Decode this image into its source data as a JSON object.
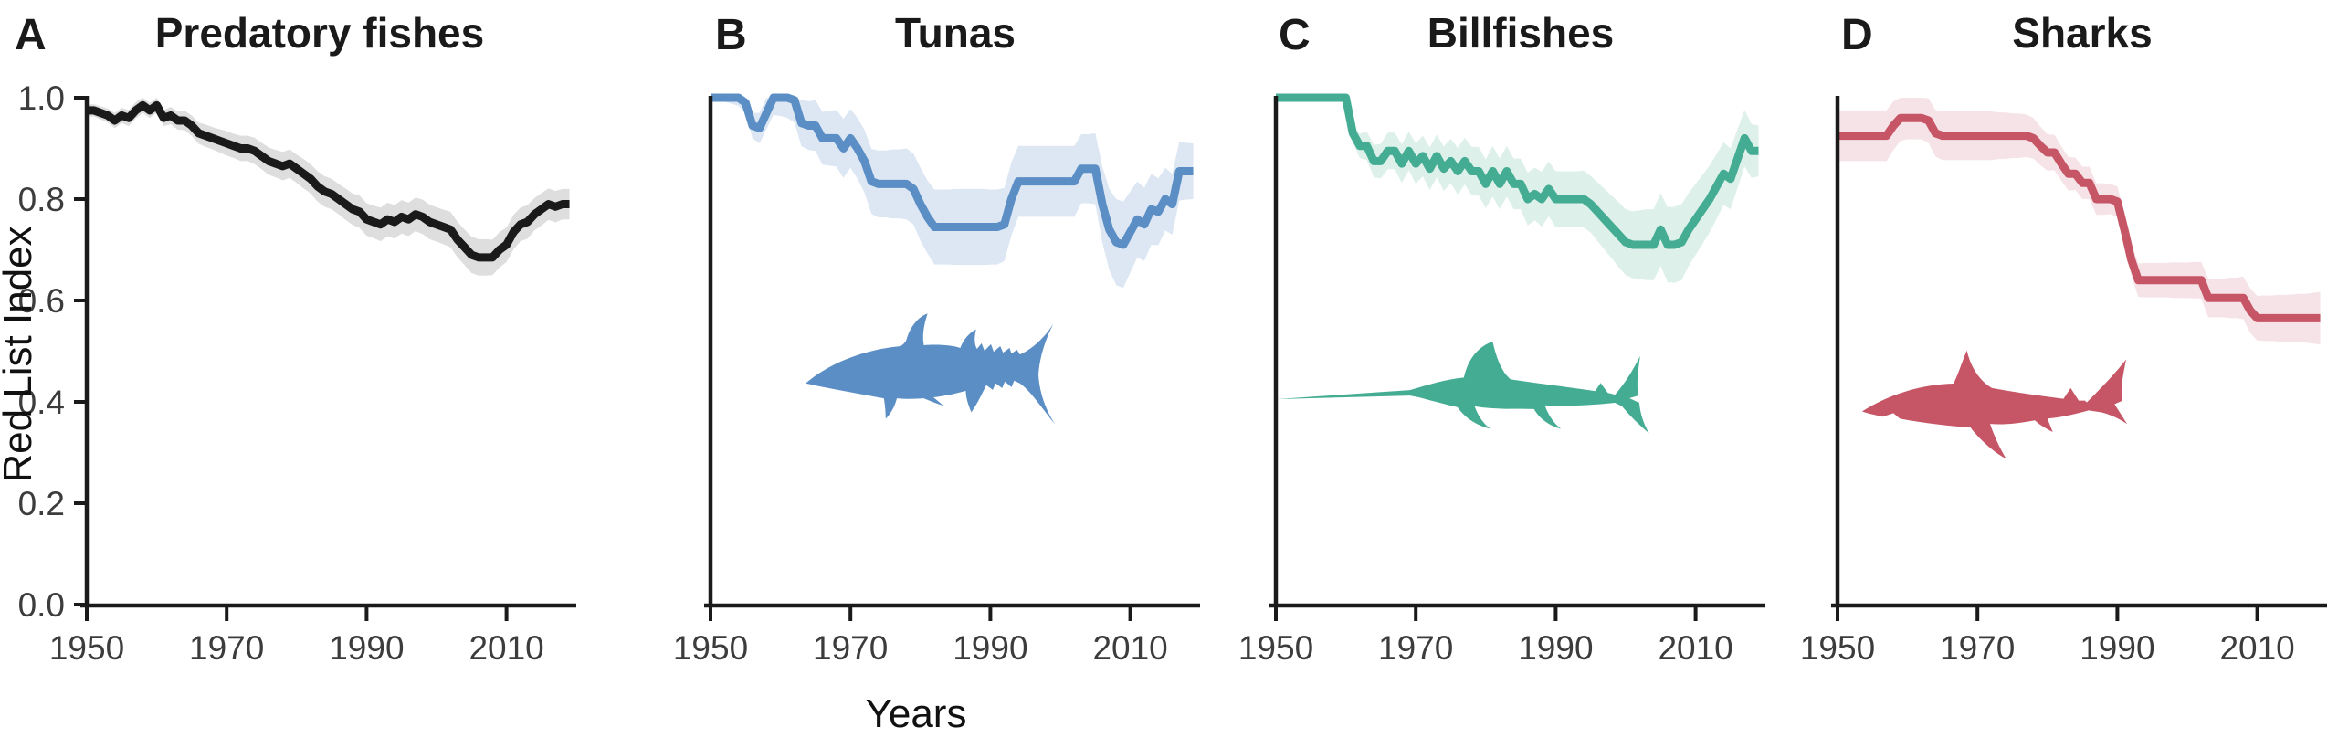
{
  "figure": {
    "y_axis_label": "Red List Index",
    "x_axis_label": "Years",
    "x_tick_labels": [
      "1950",
      "1970",
      "1990",
      "2010"
    ],
    "y_tick_labels": [
      "0.0",
      "0.2",
      "0.4",
      "0.6",
      "0.8",
      "1.0"
    ],
    "background_color": "#ffffff",
    "axis_color": "#1a1a1a",
    "tick_label_color": "#3c3c3c"
  },
  "panels": [
    {
      "letter": "A",
      "title": "Predatory fishes",
      "line_color": "#1a1a1a",
      "band_color": "#dedede",
      "fish_icon": "none"
    },
    {
      "letter": "B",
      "title": "Tunas",
      "line_color": "#5b8ec4",
      "band_color": "#dce7f3",
      "fish_icon": "tuna-icon"
    },
    {
      "letter": "C",
      "title": "Billfishes",
      "line_color": "#45ac94",
      "band_color": "#def0ea",
      "fish_icon": "billfish-icon"
    },
    {
      "letter": "D",
      "title": "Sharks",
      "line_color": "#c65566",
      "band_color": "#f6e3e7",
      "fish_icon": "shark-icon"
    }
  ],
  "chart_data": {
    "type": "line",
    "layout": "4 horizontal panels sharing y-axis",
    "xlabel": "Years",
    "ylabel": "Red List Index",
    "xlim": [
      1948,
      2021
    ],
    "ylim": [
      0.0,
      1.0
    ],
    "x_ticks": [
      1950,
      1970,
      1990,
      2010
    ],
    "y_ticks": [
      0.0,
      0.2,
      0.4,
      0.6,
      0.8,
      1.0
    ],
    "grid": false,
    "legend": "none",
    "band_meaning": "confidence interval around Red List Index",
    "x": [
      1950,
      1951,
      1952,
      1953,
      1954,
      1955,
      1956,
      1957,
      1958,
      1959,
      1960,
      1961,
      1962,
      1963,
      1964,
      1965,
      1966,
      1967,
      1968,
      1969,
      1970,
      1971,
      1972,
      1973,
      1974,
      1975,
      1976,
      1977,
      1978,
      1979,
      1980,
      1981,
      1982,
      1983,
      1984,
      1985,
      1986,
      1987,
      1988,
      1989,
      1990,
      1991,
      1992,
      1993,
      1994,
      1995,
      1996,
      1997,
      1998,
      1999,
      2000,
      2001,
      2002,
      2003,
      2004,
      2005,
      2006,
      2007,
      2008,
      2009,
      2010,
      2011,
      2012,
      2013,
      2014,
      2015,
      2016,
      2017,
      2018,
      2019
    ],
    "series": [
      {
        "name": "Predatory fishes",
        "y": [
          0.975,
          0.975,
          0.97,
          0.965,
          0.955,
          0.965,
          0.96,
          0.975,
          0.985,
          0.975,
          0.985,
          0.96,
          0.965,
          0.955,
          0.955,
          0.945,
          0.93,
          0.925,
          0.92,
          0.915,
          0.91,
          0.905,
          0.9,
          0.9,
          0.895,
          0.885,
          0.875,
          0.87,
          0.865,
          0.87,
          0.86,
          0.85,
          0.84,
          0.825,
          0.815,
          0.81,
          0.8,
          0.79,
          0.78,
          0.775,
          0.76,
          0.755,
          0.75,
          0.76,
          0.755,
          0.765,
          0.76,
          0.77,
          0.765,
          0.755,
          0.75,
          0.745,
          0.74,
          0.72,
          0.705,
          0.69,
          0.685,
          0.685,
          0.685,
          0.7,
          0.71,
          0.735,
          0.75,
          0.755,
          0.77,
          0.78,
          0.79,
          0.785,
          0.79,
          0.79
        ],
        "band_halfwidth": [
          0.012,
          0.012,
          0.013,
          0.014,
          0.015,
          0.015,
          0.016,
          0.016,
          0.015,
          0.015,
          0.015,
          0.016,
          0.017,
          0.018,
          0.019,
          0.02,
          0.021,
          0.022,
          0.022,
          0.023,
          0.024,
          0.024,
          0.025,
          0.025,
          0.026,
          0.026,
          0.027,
          0.027,
          0.028,
          0.028,
          0.028,
          0.029,
          0.029,
          0.03,
          0.03,
          0.03,
          0.03,
          0.031,
          0.031,
          0.032,
          0.032,
          0.032,
          0.033,
          0.033,
          0.033,
          0.033,
          0.033,
          0.033,
          0.034,
          0.034,
          0.034,
          0.034,
          0.035,
          0.035,
          0.035,
          0.036,
          0.036,
          0.036,
          0.035,
          0.035,
          0.034,
          0.034,
          0.033,
          0.033,
          0.032,
          0.032,
          0.031,
          0.031,
          0.03,
          0.03
        ]
      },
      {
        "name": "Tunas",
        "y": [
          1.0,
          1.0,
          1.0,
          1.0,
          1.0,
          0.99,
          0.945,
          0.94,
          0.97,
          1.0,
          1.0,
          1.0,
          0.995,
          0.95,
          0.945,
          0.945,
          0.92,
          0.92,
          0.92,
          0.9,
          0.92,
          0.9,
          0.875,
          0.835,
          0.83,
          0.83,
          0.83,
          0.83,
          0.83,
          0.82,
          0.79,
          0.765,
          0.745,
          0.745,
          0.745,
          0.745,
          0.745,
          0.745,
          0.745,
          0.745,
          0.745,
          0.745,
          0.75,
          0.8,
          0.835,
          0.835,
          0.835,
          0.835,
          0.835,
          0.835,
          0.835,
          0.835,
          0.835,
          0.86,
          0.86,
          0.86,
          0.79,
          0.74,
          0.715,
          0.71,
          0.735,
          0.76,
          0.75,
          0.78,
          0.775,
          0.8,
          0.79,
          0.855,
          0.855,
          0.855
        ],
        "band_halfwidth": [
          0.004,
          0.006,
          0.008,
          0.012,
          0.016,
          0.02,
          0.025,
          0.03,
          0.032,
          0.034,
          0.036,
          0.04,
          0.044,
          0.046,
          0.048,
          0.05,
          0.052,
          0.054,
          0.056,
          0.058,
          0.058,
          0.06,
          0.062,
          0.064,
          0.066,
          0.066,
          0.068,
          0.068,
          0.07,
          0.07,
          0.072,
          0.072,
          0.074,
          0.074,
          0.074,
          0.075,
          0.075,
          0.075,
          0.075,
          0.075,
          0.074,
          0.074,
          0.072,
          0.072,
          0.07,
          0.07,
          0.07,
          0.07,
          0.07,
          0.07,
          0.07,
          0.07,
          0.07,
          0.068,
          0.068,
          0.07,
          0.075,
          0.08,
          0.085,
          0.085,
          0.08,
          0.075,
          0.072,
          0.07,
          0.066,
          0.062,
          0.06,
          0.058,
          0.056,
          0.055
        ]
      },
      {
        "name": "Billfishes",
        "y": [
          1.0,
          1.0,
          1.0,
          1.0,
          1.0,
          1.0,
          1.0,
          1.0,
          1.0,
          1.0,
          1.0,
          0.93,
          0.905,
          0.905,
          0.875,
          0.875,
          0.895,
          0.895,
          0.87,
          0.895,
          0.87,
          0.885,
          0.86,
          0.885,
          0.86,
          0.875,
          0.855,
          0.875,
          0.855,
          0.855,
          0.83,
          0.855,
          0.83,
          0.855,
          0.83,
          0.83,
          0.8,
          0.81,
          0.8,
          0.82,
          0.8,
          0.8,
          0.8,
          0.8,
          0.8,
          0.79,
          0.775,
          0.76,
          0.745,
          0.73,
          0.715,
          0.71,
          0.71,
          0.71,
          0.71,
          0.74,
          0.71,
          0.71,
          0.715,
          0.74,
          0.76,
          0.78,
          0.8,
          0.825,
          0.85,
          0.84,
          0.88,
          0.92,
          0.895,
          0.895
        ],
        "band_halfwidth": [
          0.004,
          0.004,
          0.005,
          0.005,
          0.006,
          0.006,
          0.007,
          0.007,
          0.008,
          0.008,
          0.01,
          0.018,
          0.024,
          0.028,
          0.032,
          0.034,
          0.036,
          0.036,
          0.038,
          0.038,
          0.04,
          0.04,
          0.042,
          0.042,
          0.044,
          0.044,
          0.046,
          0.046,
          0.048,
          0.048,
          0.048,
          0.05,
          0.05,
          0.05,
          0.05,
          0.05,
          0.052,
          0.052,
          0.054,
          0.054,
          0.055,
          0.055,
          0.055,
          0.055,
          0.056,
          0.056,
          0.058,
          0.06,
          0.062,
          0.064,
          0.065,
          0.066,
          0.068,
          0.07,
          0.07,
          0.072,
          0.074,
          0.075,
          0.075,
          0.072,
          0.07,
          0.068,
          0.066,
          0.064,
          0.062,
          0.06,
          0.058,
          0.056,
          0.053,
          0.05
        ]
      },
      {
        "name": "Sharks",
        "y": [
          0.925,
          0.925,
          0.925,
          0.925,
          0.925,
          0.925,
          0.925,
          0.925,
          0.945,
          0.96,
          0.96,
          0.96,
          0.96,
          0.955,
          0.93,
          0.925,
          0.925,
          0.925,
          0.925,
          0.925,
          0.925,
          0.925,
          0.925,
          0.925,
          0.925,
          0.925,
          0.925,
          0.925,
          0.92,
          0.905,
          0.892,
          0.892,
          0.87,
          0.85,
          0.85,
          0.832,
          0.832,
          0.8,
          0.8,
          0.8,
          0.795,
          0.74,
          0.68,
          0.64,
          0.64,
          0.64,
          0.64,
          0.64,
          0.64,
          0.64,
          0.64,
          0.64,
          0.64,
          0.605,
          0.605,
          0.605,
          0.605,
          0.605,
          0.605,
          0.58,
          0.565,
          0.565,
          0.565,
          0.565,
          0.565,
          0.565,
          0.565,
          0.565,
          0.565,
          0.565
        ],
        "band_halfwidth": [
          0.05,
          0.05,
          0.05,
          0.05,
          0.05,
          0.05,
          0.05,
          0.05,
          0.048,
          0.045,
          0.042,
          0.042,
          0.042,
          0.044,
          0.046,
          0.048,
          0.048,
          0.048,
          0.048,
          0.048,
          0.048,
          0.048,
          0.048,
          0.046,
          0.046,
          0.044,
          0.044,
          0.042,
          0.04,
          0.038,
          0.036,
          0.035,
          0.034,
          0.033,
          0.032,
          0.032,
          0.032,
          0.031,
          0.031,
          0.03,
          0.03,
          0.031,
          0.032,
          0.033,
          0.034,
          0.034,
          0.034,
          0.034,
          0.035,
          0.035,
          0.035,
          0.036,
          0.036,
          0.038,
          0.038,
          0.038,
          0.04,
          0.04,
          0.042,
          0.044,
          0.044,
          0.045,
          0.045,
          0.046,
          0.046,
          0.047,
          0.048,
          0.048,
          0.05,
          0.052
        ]
      }
    ]
  }
}
